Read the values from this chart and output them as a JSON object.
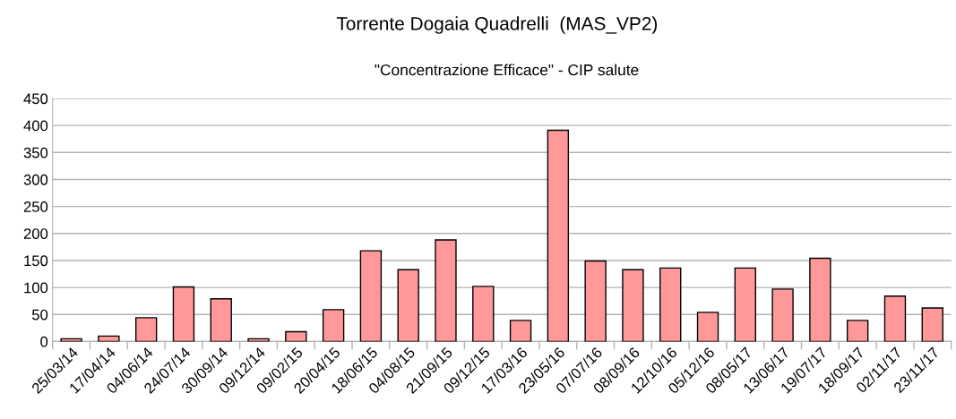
{
  "chart_data": {
    "type": "bar",
    "title": "Torrente Dogaia Quadrelli  (MAS_VP2)",
    "subtitle": "\"Concentrazione Efficace\" - CIP salute",
    "categories": [
      "25/03/14",
      "17/04/14",
      "04/06/14",
      "24/07/14",
      "30/09/14",
      "09/12/14",
      "09/02/15",
      "20/04/15",
      "18/06/15",
      "04/08/15",
      "21/09/15",
      "09/12/15",
      "17/03/16",
      "23/05/16",
      "07/07/16",
      "08/09/16",
      "12/10/16",
      "05/12/16",
      "08/05/17",
      "13/06/17",
      "19/07/17",
      "18/09/17",
      "02/11/17",
      "23/11/17"
    ],
    "values": [
      5,
      10,
      44,
      101,
      79,
      5,
      18,
      59,
      168,
      133,
      188,
      102,
      39,
      391,
      149,
      133,
      136,
      54,
      136,
      97,
      154,
      39,
      84,
      62
    ],
    "color": "#ff9999",
    "ylim": [
      0,
      450
    ],
    "yticks": [
      0,
      50,
      100,
      150,
      200,
      250,
      300,
      350,
      400,
      450
    ],
    "grid": "y",
    "legend": false
  }
}
